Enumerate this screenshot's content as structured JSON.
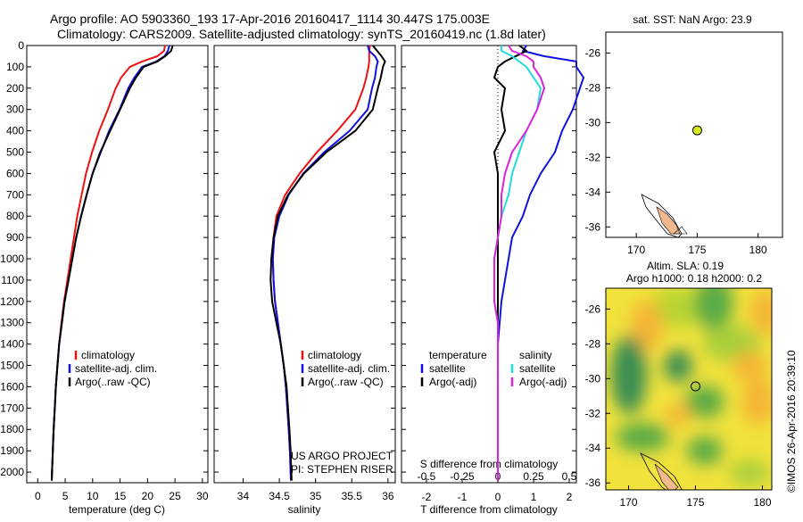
{
  "header": {
    "line1": "Argo profile: AO 5903360_193 17-Apr-2016 20160417_1114 30.447S 175.003E",
    "line2": "Climatology: CARS2009. Satellite-adjusted climatology: synTS_20160419.nc (1.8d later)"
  },
  "colors": {
    "climatology": "#ee1111",
    "satellite": "#1111dd",
    "argo": "#000000",
    "sat_salinity": "#22dddd",
    "argo_salinity": "#dd22dd",
    "marker": "#d7e81a",
    "land": "#f2b98e"
  },
  "chart_data": [
    {
      "type": "line",
      "name": "temperature-profile",
      "xlabel": "temperature (deg C)",
      "ylabel": "",
      "xlim": [
        -2,
        31
      ],
      "ylim": [
        2050,
        0
      ],
      "xticks": [
        0,
        5,
        10,
        15,
        20,
        25,
        30
      ],
      "yticks": [
        0,
        100,
        200,
        300,
        400,
        500,
        600,
        700,
        800,
        900,
        1000,
        1100,
        1200,
        1300,
        1400,
        1500,
        1600,
        1700,
        1800,
        1900,
        2000
      ],
      "y": [
        0,
        25,
        50,
        75,
        100,
        150,
        200,
        300,
        400,
        500,
        600,
        700,
        800,
        900,
        1000,
        1100,
        1200,
        1300,
        1400,
        1500,
        1600,
        1700,
        1800,
        1900,
        2000,
        2040
      ],
      "series": [
        {
          "name": "climatology",
          "color_key": "climatology",
          "values": [
            23.2,
            23.0,
            21.8,
            19.0,
            16.8,
            15.2,
            14.2,
            12.8,
            11.2,
            9.9,
            8.8,
            8.0,
            7.2,
            6.6,
            6.0,
            5.4,
            4.8,
            4.3,
            3.9,
            3.6,
            3.3,
            3.1,
            2.9,
            2.75,
            2.6,
            2.55
          ]
        },
        {
          "name": "satellite-adj. clim.",
          "color_key": "satellite",
          "values": [
            24.0,
            23.7,
            23.1,
            21.6,
            19.0,
            17.6,
            16.5,
            14.9,
            13.0,
            11.5,
            10.0,
            8.9,
            7.9,
            7.0,
            6.3,
            5.6,
            4.9,
            4.4,
            3.9,
            3.6,
            3.3,
            3.1,
            2.9,
            2.75,
            2.6,
            2.55
          ]
        },
        {
          "name": "Argo(..raw -QC)",
          "color_key": "argo",
          "values": [
            24.6,
            24.3,
            23.2,
            21.8,
            19.3,
            17.9,
            16.8,
            15.0,
            13.2,
            11.4,
            10.0,
            8.9,
            7.9,
            7.0,
            6.3,
            5.6,
            4.9,
            4.4,
            3.9,
            3.6,
            3.3,
            3.1,
            2.9,
            2.75,
            2.6,
            2.55
          ]
        }
      ],
      "legend": [
        "climatology",
        "satellite-adj. clim.",
        "Argo(..raw -QC)"
      ],
      "legend_position": "lower-right"
    },
    {
      "type": "line",
      "name": "salinity-profile",
      "xlabel": "salinity",
      "xlim": [
        33.6,
        36.1
      ],
      "ylim": [
        2050,
        0
      ],
      "xticks": [
        34,
        34.5,
        35,
        35.5,
        36
      ],
      "y": [
        0,
        25,
        50,
        75,
        100,
        150,
        200,
        300,
        400,
        500,
        600,
        700,
        800,
        900,
        1000,
        1100,
        1200,
        1300,
        1400,
        1500,
        1600,
        1700,
        1800,
        1900,
        2000,
        2040
      ],
      "series": [
        {
          "name": "climatology",
          "color_key": "climatology",
          "values": [
            35.75,
            35.74,
            35.74,
            35.74,
            35.73,
            35.7,
            35.66,
            35.55,
            35.3,
            35.02,
            34.78,
            34.58,
            34.46,
            34.42,
            34.41,
            34.42,
            34.44,
            34.48,
            34.52,
            34.56,
            34.59,
            34.61,
            34.63,
            34.645,
            34.655,
            34.66
          ]
        },
        {
          "name": "satellite-adj. clim.",
          "color_key": "satellite",
          "values": [
            35.72,
            35.74,
            35.82,
            35.86,
            35.84,
            35.82,
            35.78,
            35.72,
            35.47,
            35.12,
            34.83,
            34.63,
            34.5,
            34.43,
            34.41,
            34.42,
            34.44,
            34.48,
            34.52,
            34.56,
            34.59,
            34.61,
            34.63,
            34.645,
            34.655,
            34.66
          ]
        },
        {
          "name": "Argo(..raw -QC)",
          "color_key": "argo",
          "values": [
            35.79,
            35.85,
            35.91,
            35.96,
            35.93,
            35.9,
            35.86,
            35.79,
            35.55,
            35.15,
            34.84,
            34.62,
            34.48,
            34.42,
            34.39,
            34.38,
            34.4,
            34.46,
            34.52,
            34.56,
            34.6,
            34.62,
            34.64,
            34.655,
            34.665,
            34.67
          ]
        }
      ],
      "legend": [
        "climatology",
        "satellite-adj. clim.",
        "Argo(..raw -QC)"
      ],
      "legend_position": "lower-right",
      "credits": [
        "US ARGO PROJECT",
        "PI: STEPHEN RISER"
      ]
    },
    {
      "type": "line",
      "name": "difference-profile",
      "xlabel": "T difference from climatology",
      "xlabel_top": "S difference from climatology",
      "xlim": [
        -2.7,
        2.2
      ],
      "ylim": [
        2050,
        0
      ],
      "xticks": [
        -2,
        -1,
        0,
        1,
        2
      ],
      "xtick_labels": [
        "-2",
        "-1",
        "0",
        "1",
        "2"
      ],
      "s_xticks": [
        -2,
        -1,
        0,
        1,
        2
      ],
      "s_xtick_labels": [
        "-0.5",
        "-0.25",
        "0",
        "0.25",
        "0.5"
      ],
      "zero_line": "dotted",
      "y": [
        0,
        25,
        50,
        75,
        100,
        150,
        200,
        300,
        400,
        500,
        600,
        700,
        800,
        900,
        1000,
        1100,
        1200,
        1300,
        1400,
        1500,
        1600,
        1700,
        1800,
        1900,
        2000,
        2040
      ],
      "series": [
        {
          "name": "temperature satellite",
          "color_key": "satellite",
          "values": [
            0.8,
            0.7,
            1.3,
            2.2,
            2.2,
            2.4,
            2.3,
            2.1,
            1.8,
            1.6,
            1.2,
            0.9,
            0.7,
            0.4,
            0.3,
            0.2,
            0.1,
            0.05,
            0.0,
            0.0,
            0.0,
            0.0,
            0.0,
            0.0,
            0.0,
            0.0
          ]
        },
        {
          "name": "temperature Argo(-adj)",
          "color_key": "argo",
          "values": [
            0.6,
            0.8,
            0.5,
            0.2,
            0.0,
            -0.1,
            0.2,
            0.1,
            0.2,
            -0.1,
            0.0,
            0.0,
            0.0,
            0.0,
            0.0,
            0.0,
            0.0,
            0.0,
            0.0,
            0.0,
            0.0,
            0.0,
            0.0,
            0.0,
            0.0,
            0.0
          ]
        },
        {
          "name": "salinity satellite",
          "color_key": "sat_salinity",
          "values": [
            0.1,
            0.1,
            0.4,
            0.6,
            0.8,
            1.0,
            1.2,
            1.1,
            0.8,
            0.6,
            0.4,
            0.3,
            0.1,
            0.0,
            -0.1,
            -0.1,
            -0.1,
            0.0,
            0.0,
            0.0,
            0.0,
            0.0,
            0.0,
            0.0,
            0.0,
            0.0
          ]
        },
        {
          "name": "salinity Argo(-adj)",
          "color_key": "argo_salinity",
          "values": [
            0.3,
            0.4,
            0.8,
            1.0,
            1.0,
            1.2,
            1.3,
            1.1,
            0.8,
            0.4,
            0.2,
            0.1,
            0.1,
            0.0,
            -0.1,
            -0.1,
            -0.1,
            0.0,
            0.0,
            0.0,
            0.0,
            0.0,
            0.0,
            0.0,
            0.0,
            0.0
          ]
        }
      ],
      "legend_columns": [
        {
          "title": "temperature",
          "items": [
            "satellite",
            "Argo(-adj)"
          ]
        },
        {
          "title": "salinity",
          "items": [
            "satellite",
            "Argo(-adj)"
          ]
        }
      ],
      "legend_position": "lower-right"
    },
    {
      "type": "scatter",
      "name": "sst-map",
      "title": "sat. SST: NaN  Argo: 23.9",
      "xlim": [
        167.5,
        182
      ],
      "ylim": [
        -36.6,
        -24.8
      ],
      "xticks": [
        170,
        175,
        180
      ],
      "yticks": [
        -26,
        -28,
        -30,
        -32,
        -34,
        -36
      ],
      "points": [
        {
          "lon": 175.003,
          "lat": -30.447
        }
      ]
    },
    {
      "type": "heatmap",
      "name": "sla-map",
      "title_line1": "Altim. SLA: 0.19",
      "title_line2": "Argo h1000: 0.18 h2000: 0.2",
      "xlim": [
        168.3,
        180.7
      ],
      "ylim": [
        -36.4,
        -24.8
      ],
      "xticks": [
        170,
        175,
        180
      ],
      "yticks": [
        -26,
        -28,
        -30,
        -32,
        -34,
        -36
      ],
      "points": [
        {
          "lon": 175.003,
          "lat": -30.447
        }
      ],
      "timestamp": "©IMOS 26-Apr-2016 20:39:10"
    }
  ]
}
